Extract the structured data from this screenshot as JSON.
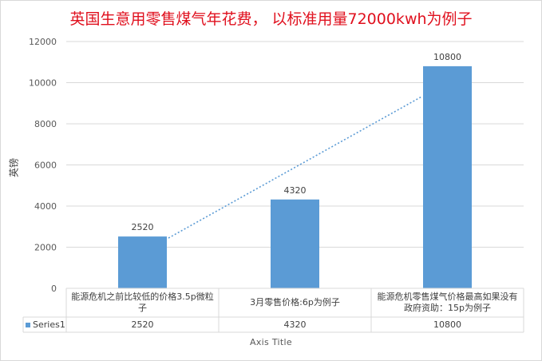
{
  "chart_data": {
    "type": "bar",
    "title": "英国生意用零售煤气年花费， 以标准用量72000kwh为例子",
    "ylabel": "英镑",
    "xlabel": "Axis Title",
    "categories": [
      "能源危机之前比较低的价格3.5p微粒子",
      "3月零售价格:6p为例子",
      "能源危机零售煤气价格最高如果没有政府资助：15p为例子"
    ],
    "series": [
      {
        "name": "Series1",
        "values": [
          2520,
          4320,
          10800
        ]
      }
    ],
    "ylim": [
      0,
      12000
    ],
    "yticks": [
      0,
      2000,
      4000,
      6000,
      8000,
      10000,
      12000
    ],
    "data_labels": [
      "2520",
      "4320",
      "10800"
    ],
    "trendline": "linear, dotted",
    "grid": true,
    "data_table": true,
    "colors": {
      "bar": "#5b9bd5",
      "title": "#e0101e",
      "grid": "#d9d9d9"
    }
  }
}
